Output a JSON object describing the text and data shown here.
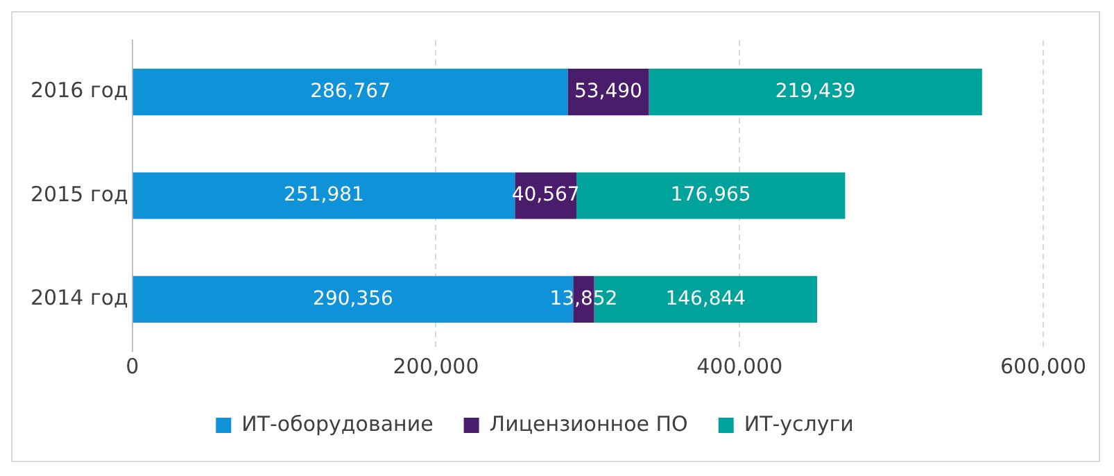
{
  "chart_data": {
    "type": "bar",
    "orientation": "horizontal",
    "stacked": true,
    "categories": [
      "2016 год",
      "2015 год",
      "2014 год"
    ],
    "series": [
      {
        "name": "ИТ-оборудование",
        "color": "#0f92d8",
        "values": [
          286767,
          251981,
          290356
        ],
        "value_labels": [
          "286,767",
          "251,981",
          "290,356"
        ]
      },
      {
        "name": "Лицензионное ПО",
        "color": "#4a1c6c",
        "values": [
          53490,
          40567,
          13852
        ],
        "value_labels": [
          "53,490",
          "40,567",
          "13,852"
        ]
      },
      {
        "name": "ИТ-услуги",
        "color": "#00a39b",
        "values": [
          219439,
          176965,
          146844
        ],
        "value_labels": [
          "219,439",
          "176,965",
          "146,844"
        ]
      }
    ],
    "xlim": [
      0,
      600000
    ],
    "xticks": [
      {
        "value": 0,
        "label": "0"
      },
      {
        "value": 200000,
        "label": "200,000"
      },
      {
        "value": 400000,
        "label": "400,000"
      },
      {
        "value": 600000,
        "label": "600,000"
      }
    ],
    "grid": "x",
    "legend": "bottom"
  }
}
